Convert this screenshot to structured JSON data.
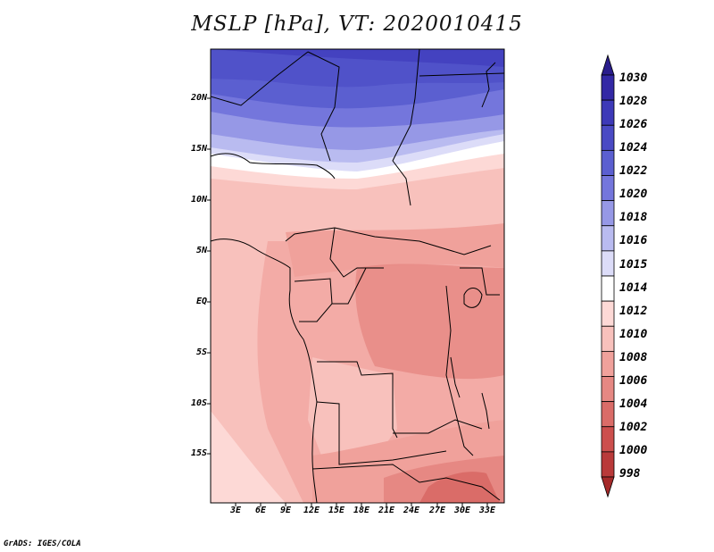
{
  "title": "MSLP [hPa], VT: 2020010415",
  "map": {
    "lat_labels": [
      "20N",
      "15N",
      "10N",
      "5N",
      "EQ",
      "5S",
      "10S",
      "15S"
    ],
    "lon_labels": [
      "3E",
      "6E",
      "9E",
      "12E",
      "15E",
      "18E",
      "21E",
      "24E",
      "27E",
      "30E",
      "33E"
    ]
  },
  "colorbar": {
    "levels": [
      "1030",
      "1028",
      "1026",
      "1024",
      "1022",
      "1020",
      "1018",
      "1016",
      "1015",
      "1014",
      "1012",
      "1010",
      "1008",
      "1006",
      "1004",
      "1002",
      "1000",
      "998"
    ],
    "colors": [
      "#2a1d8c",
      "#3328a5",
      "#3d39b8",
      "#4a4ac4",
      "#5b5fd0",
      "#7476dc",
      "#9698e6",
      "#b9bbf0",
      "#dcdcf8",
      "#ffffff",
      "#fdd9d6",
      "#f8c1bc",
      "#f0a19b",
      "#e68883",
      "#da6c68",
      "#cc4f4d",
      "#b93a3a",
      "#a52a2a"
    ]
  },
  "credit": "GrADS: IGES/COLA"
}
